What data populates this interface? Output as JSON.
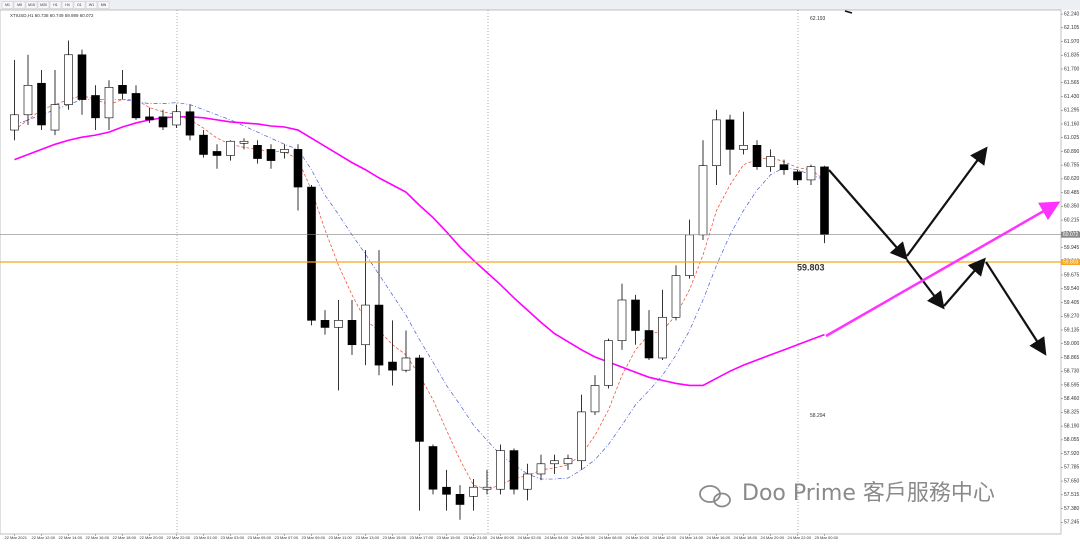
{
  "chart_data": {
    "type": "candlestick",
    "title": "XTIUSD,H1 60.738 60.749 59.989 60.072",
    "timeframes": [
      "M1",
      "M5",
      "M15",
      "M30",
      "H1",
      "H4",
      "D1",
      "W1",
      "MN"
    ],
    "watermark": "Doo Prime 客戶服務中心",
    "categories": [
      "22 Mar 2021",
      null,
      "22 Mar 12:00",
      null,
      "22 Mar 14:00",
      null,
      "22 Mar 16:00",
      null,
      "22 Mar 18:00",
      null,
      "22 Mar 20:00",
      null,
      "22 Mar 22:00",
      null,
      "23 Mar 01:00",
      null,
      "23 Mar 03:00",
      null,
      "23 Mar 05:00",
      null,
      "23 Mar 07:00",
      null,
      "23 Mar 09:00",
      null,
      "23 Mar 11:00",
      null,
      "23 Mar 13:00",
      null,
      "23 Mar 15:00",
      null,
      "23 Mar 17:00",
      null,
      "23 Mar 19:00",
      null,
      "23 Mar 21:00",
      null,
      "24 Mar 00:00",
      null,
      "24 Mar 02:00",
      null,
      "24 Mar 04:00",
      null,
      "24 Mar 06:00",
      null,
      "24 Mar 08:00",
      null,
      "24 Mar 10:00",
      null,
      "24 Mar 12:00",
      null,
      "24 Mar 14:00",
      null,
      "24 Mar 16:00",
      null,
      "24 Mar 18:00",
      null,
      "24 Mar 20:00",
      null,
      "24 Mar 22:00",
      null,
      "25 Mar 00:00"
    ],
    "open": [
      61.1,
      61.25,
      61.56,
      61.1,
      61.35,
      61.84,
      61.44,
      61.22,
      61.54,
      61.46,
      61.23,
      61.23,
      61.15,
      61.28,
      61.05,
      60.89,
      60.85,
      60.97,
      60.95,
      60.91,
      60.88,
      60.91,
      60.54,
      59.23,
      59.16,
      59.23,
      58.99,
      59.38,
      58.82,
      58.74,
      58.86,
      57.99,
      57.59,
      57.52,
      57.5,
      57.57,
      57.57,
      57.95,
      57.57,
      57.72,
      57.82,
      57.82,
      57.85,
      58.33,
      58.59,
      59.03,
      59.43,
      59.13,
      58.86,
      59.26,
      59.67,
      60.07,
      60.75,
      61.2,
      60.91,
      60.95,
      60.74,
      60.76,
      60.69,
      60.61,
      60.738
    ],
    "high": [
      61.79,
      61.84,
      61.69,
      61.69,
      61.98,
      61.89,
      61.54,
      61.59,
      61.69,
      61.54,
      61.32,
      61.3,
      61.35,
      61.35,
      61.1,
      60.96,
      61.0,
      61.02,
      61.0,
      60.96,
      60.96,
      60.96,
      60.56,
      59.33,
      59.43,
      59.43,
      59.92,
      59.92,
      59.23,
      59.13,
      58.89,
      58.01,
      57.76,
      57.61,
      57.67,
      57.76,
      58.01,
      57.97,
      57.82,
      57.91,
      57.91,
      57.91,
      58.5,
      58.69,
      59.05,
      59.59,
      59.48,
      59.33,
      59.53,
      59.77,
      60.22,
      61.0,
      61.3,
      61.25,
      61.28,
      61.0,
      60.91,
      60.81,
      60.71,
      60.76,
      60.749
    ],
    "low": [
      61.0,
      61.15,
      61.1,
      61.05,
      61.3,
      61.25,
      61.1,
      61.1,
      61.4,
      61.2,
      61.17,
      61.1,
      61.12,
      61.0,
      60.83,
      60.72,
      60.8,
      60.91,
      60.77,
      60.72,
      60.82,
      60.31,
      59.18,
      59.09,
      58.54,
      58.89,
      58.79,
      58.69,
      58.59,
      58.72,
      57.36,
      57.52,
      57.36,
      57.27,
      57.36,
      57.52,
      57.52,
      57.52,
      57.46,
      57.66,
      57.72,
      57.76,
      57.76,
      58.3,
      58.56,
      58.94,
      58.99,
      58.84,
      58.84,
      59.23,
      59.64,
      60.02,
      60.56,
      60.66,
      60.86,
      60.71,
      60.69,
      60.66,
      60.56,
      60.56,
      59.989
    ],
    "close": [
      61.25,
      61.54,
      61.15,
      61.35,
      61.84,
      61.4,
      61.22,
      61.52,
      61.46,
      61.22,
      61.2,
      61.13,
      61.28,
      61.05,
      60.86,
      60.85,
      60.99,
      60.99,
      60.82,
      60.8,
      60.91,
      60.54,
      59.23,
      59.16,
      59.23,
      58.99,
      59.38,
      58.79,
      58.74,
      58.86,
      58.04,
      57.57,
      57.52,
      57.42,
      57.59,
      57.59,
      57.95,
      57.57,
      57.72,
      57.82,
      57.85,
      57.87,
      58.33,
      58.59,
      59.03,
      59.43,
      59.13,
      58.86,
      59.26,
      59.67,
      60.07,
      60.75,
      61.2,
      60.91,
      60.95,
      60.74,
      60.84,
      60.71,
      60.61,
      60.74,
      60.072
    ],
    "up_color": "#ffffff",
    "down_color": "#000000",
    "overlays": [
      {
        "color": "#ff00ff",
        "style": "solid",
        "values": [
          60.81,
          60.86,
          60.91,
          60.96,
          61.0,
          61.03,
          61.05,
          61.08,
          61.13,
          61.17,
          61.2,
          61.22,
          61.23,
          61.23,
          61.22,
          61.2,
          61.18,
          61.17,
          61.16,
          61.14,
          61.13,
          61.1,
          61.02,
          60.94,
          60.86,
          60.78,
          60.71,
          60.63,
          60.56,
          60.49,
          60.36,
          60.24,
          60.1,
          59.95,
          59.82,
          59.7,
          59.58,
          59.45,
          59.33,
          59.21,
          59.1,
          59.02,
          58.94,
          58.87,
          58.82,
          58.77,
          58.72,
          58.67,
          58.64,
          58.61,
          58.59,
          58.59,
          58.66,
          58.73,
          58.79,
          58.84,
          58.89,
          58.94,
          58.99,
          59.04,
          59.09
        ]
      },
      {
        "color": "#e8442c",
        "style": "dashed",
        "values": [
          61.1,
          61.2,
          61.3,
          61.35,
          61.4,
          61.44,
          61.4,
          61.35,
          61.4,
          61.4,
          61.32,
          61.28,
          61.25,
          61.2,
          61.12,
          61.02,
          60.96,
          60.93,
          60.91,
          60.89,
          60.89,
          60.81,
          60.51,
          60.12,
          59.77,
          59.48,
          59.23,
          59.13,
          58.99,
          58.89,
          58.69,
          58.45,
          58.15,
          57.86,
          57.61,
          57.57,
          57.61,
          57.68,
          57.7,
          57.76,
          57.78,
          57.81,
          57.91,
          58.1,
          58.35,
          58.69,
          58.94,
          59.09,
          59.13,
          59.28,
          59.53,
          59.87,
          60.31,
          60.56,
          60.76,
          60.81,
          60.83,
          60.79,
          60.73,
          60.71,
          60.61
        ]
      },
      {
        "color": "#4a5bd6",
        "style": "dashdot",
        "values": [
          61.15,
          61.2,
          61.25,
          61.3,
          61.35,
          61.4,
          61.4,
          61.4,
          61.4,
          61.38,
          61.36,
          61.36,
          61.37,
          61.35,
          61.3,
          61.25,
          61.2,
          61.14,
          61.08,
          61.02,
          60.96,
          60.91,
          60.71,
          60.46,
          60.27,
          60.07,
          59.88,
          59.68,
          59.48,
          59.28,
          59.04,
          58.82,
          58.59,
          58.4,
          58.2,
          58.05,
          57.91,
          57.81,
          57.72,
          57.67,
          57.67,
          57.68,
          57.76,
          57.86,
          58.01,
          58.2,
          58.4,
          58.54,
          58.69,
          58.89,
          59.13,
          59.43,
          59.77,
          60.07,
          60.31,
          60.51,
          60.66,
          60.73,
          60.71,
          60.66,
          60.61
        ]
      }
    ],
    "hlines": [
      {
        "value": 60.072,
        "label": "60.072",
        "color": "#888888"
      },
      {
        "value": 59.803,
        "label": "59.803",
        "color": "#f5a623"
      }
    ],
    "annotations": [
      {
        "value": 62.193,
        "label": "62.193"
      },
      {
        "value": 58.294,
        "label": "58.294"
      }
    ],
    "ylim": [
      57.13,
      62.28
    ],
    "yticks": [
      {
        "value": 62.24,
        "label": "62.240"
      },
      62.105,
      {
        "value": 61.97,
        "label": "61.970"
      },
      61.835,
      {
        "value": 61.7,
        "label": "61.700"
      },
      61.565,
      {
        "value": 61.43,
        "label": "61.430"
      },
      61.295,
      {
        "value": 61.16,
        "label": "61.160"
      },
      61.025,
      {
        "value": 60.89,
        "label": "60.890"
      },
      60.755,
      {
        "value": 60.62,
        "label": "60.620"
      },
      60.485,
      {
        "value": 60.35,
        "label": "60.350"
      },
      60.215,
      {
        "value": 60.08,
        "label": "60.080"
      },
      59.945,
      {
        "value": 59.81,
        "label": "59.810"
      },
      59.675,
      {
        "value": 59.54,
        "label": "59.540"
      },
      59.405,
      {
        "value": 59.27,
        "label": "59.270"
      },
      59.135,
      {
        "value": 59,
        "label": "59.000"
      },
      58.865,
      {
        "value": 58.73,
        "label": "58.730"
      },
      58.595,
      {
        "value": 58.46,
        "label": "58.460"
      },
      58.325,
      {
        "value": 58.19,
        "label": "58.190"
      },
      58.055,
      {
        "value": 57.92,
        "label": "57.920"
      },
      57.785,
      {
        "value": 57.65,
        "label": "57.650"
      },
      57.515,
      {
        "value": 57.38,
        "label": "57.380"
      },
      57.245
    ]
  }
}
